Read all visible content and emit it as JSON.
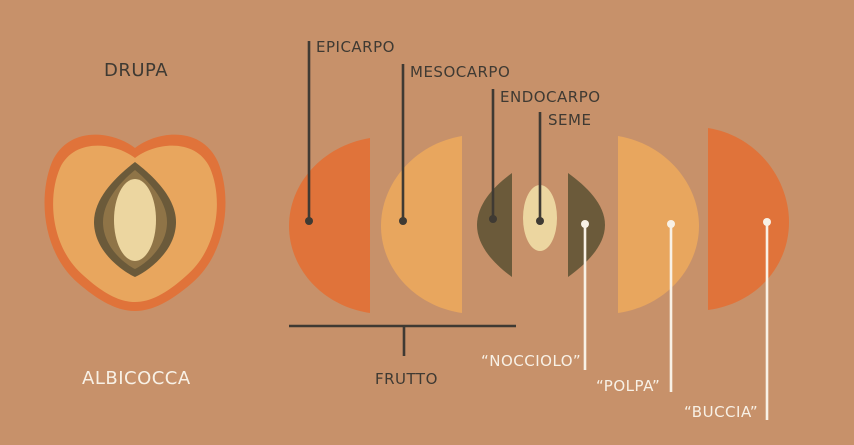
{
  "diagram": {
    "title": "DRUPA",
    "fruit_name": "ALBICOCCA",
    "layers": {
      "epicarp": "EPICARPO",
      "mesocarp": "MESOCARPO",
      "endocarp": "ENDOCARPO",
      "seed": "SEME"
    },
    "group_label": "FRUTTO",
    "common_names": {
      "stone": "“NOCCIOLO”",
      "pulp": "“POLPA”",
      "skin": "“BUCCIA”"
    }
  },
  "colors": {
    "background": "#c7916a",
    "skin": "#e0733a",
    "pulp": "#e8a65e",
    "stone": "#6b5a3a",
    "seed": "#ecd6a0",
    "label_dark": "#3f3a33",
    "label_light": "#f8f1e6"
  }
}
